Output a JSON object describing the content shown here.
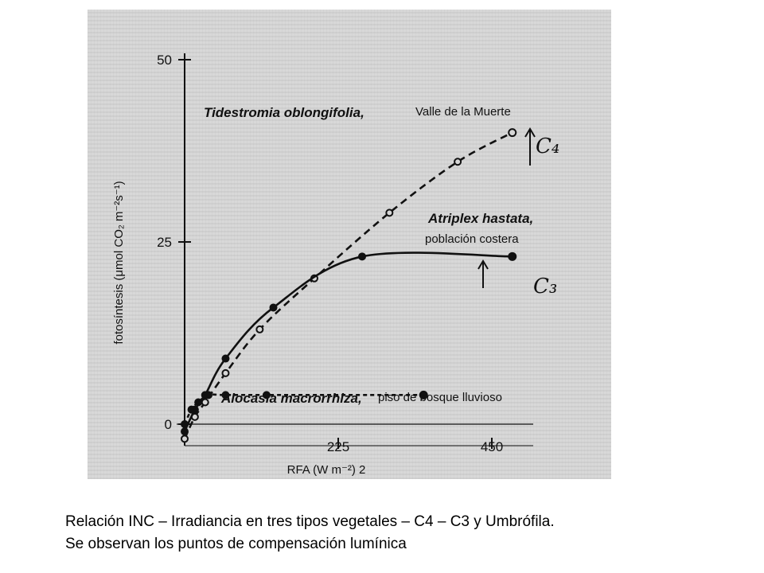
{
  "caption": {
    "line1": "Relación INC – Irradiancia en tres tipos vegetales – C4 – C3 y Umbrófila.",
    "line2": "Se observan los puntos de compensación lumínica"
  },
  "colors": {
    "scan_background": "#d6d6d6",
    "ink": "#111111",
    "page": "#ffffff"
  },
  "chart_data": {
    "type": "line",
    "xlabel": "RFA  (W m⁻²)   2",
    "ylabel": "fotosíntesis (μmol CO₂ m⁻²s⁻¹)",
    "xlim": [
      0,
      540
    ],
    "ylim": [
      -3,
      52
    ],
    "x_ticks": [
      225,
      450
    ],
    "y_ticks": [
      0,
      25,
      50
    ],
    "x_tick_labels": [
      "225",
      "450"
    ],
    "y_tick_labels": [
      "0",
      "25",
      "50"
    ],
    "series": [
      {
        "id": "tidestromia",
        "name": "Tidestromia oblongifolia,",
        "note": "Valle de la Muerte",
        "tag": "C₄",
        "line_style": "dashed",
        "marker": "open-circle",
        "end_marker": "open-circle",
        "x": [
          0,
          15,
          30,
          60,
          110,
          190,
          300,
          400,
          480
        ],
        "y": [
          -2,
          1,
          3,
          7,
          13,
          20,
          29,
          36,
          40
        ]
      },
      {
        "id": "atriplex",
        "name": "Atriplex hastata,",
        "note": "población costera",
        "tag": "C₃",
        "line_style": "solid",
        "marker": "filled-circle",
        "end_marker": "filled-circle",
        "x": [
          0,
          15,
          30,
          60,
          130,
          260,
          480
        ],
        "y": [
          -1,
          2,
          4,
          9,
          16,
          23,
          23
        ]
      },
      {
        "id": "alocasia",
        "name": "Alocasia macrorrhiza,",
        "note": "piso de bosque lluvioso",
        "line_style": "dotted",
        "marker": "filled-circle",
        "x": [
          0,
          10,
          20,
          35,
          60,
          120,
          350
        ],
        "y": [
          0,
          2,
          3,
          4,
          4,
          4,
          4
        ]
      }
    ]
  }
}
